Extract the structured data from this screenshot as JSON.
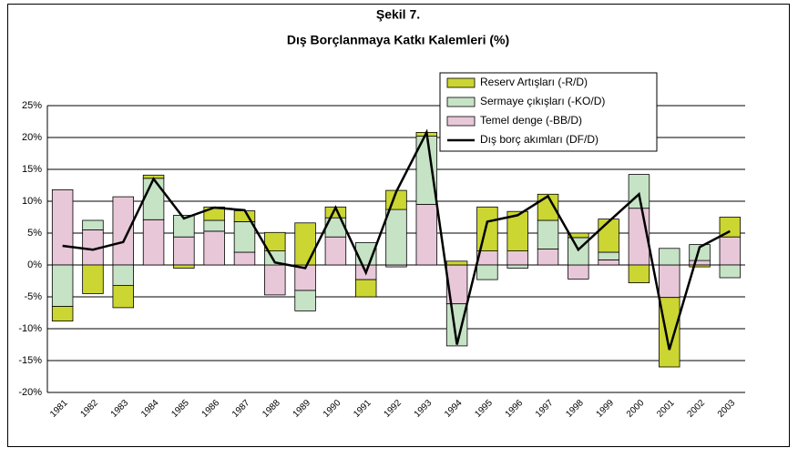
{
  "chart_data": {
    "type": "bar",
    "stacked": true,
    "title": "Şekil 7.",
    "subtitle": "Dış Borçlanmaya Katkı Kalemleri (%)",
    "categories": [
      "1981",
      "1982",
      "1983",
      "1984",
      "1985",
      "1986",
      "1987",
      "1988",
      "1989",
      "1990",
      "1991",
      "1992",
      "1993",
      "1994",
      "1995",
      "1996",
      "1997",
      "1998",
      "1999",
      "2000",
      "2001",
      "2002",
      "2003"
    ],
    "series": [
      {
        "name": "Temel denge (-BB/D)",
        "type": "bar",
        "color": "#e8c8d8",
        "values": [
          11.8,
          5.5,
          10.7,
          7.1,
          4.4,
          5.3,
          2.0,
          -4.7,
          -4.0,
          4.4,
          -2.3,
          -0.3,
          9.5,
          -6.1,
          2.2,
          2.2,
          2.5,
          -2.2,
          0.8,
          8.9,
          -5.1,
          0.7,
          4.4
        ]
      },
      {
        "name": "Sermaye çıkışları (-KO/D)",
        "type": "bar",
        "color": "#c6e3c6",
        "values": [
          -6.5,
          1.5,
          -3.2,
          6.5,
          3.4,
          1.7,
          4.8,
          2.2,
          -3.2,
          3.0,
          3.5,
          8.7,
          10.7,
          -6.6,
          -2.3,
          -0.5,
          4.5,
          4.3,
          1.2,
          5.3,
          2.6,
          2.5,
          -2.0
        ]
      },
      {
        "name": "Reserv Artışları (-R/D)",
        "type": "bar",
        "color": "#ccd632",
        "values": [
          -2.3,
          -4.5,
          -3.5,
          0.5,
          -0.5,
          2.1,
          1.7,
          2.9,
          6.6,
          1.7,
          -2.7,
          3.0,
          0.6,
          0.6,
          6.9,
          6.2,
          4.1,
          0.7,
          5.2,
          -2.8,
          -10.9,
          -0.3,
          3.1
        ]
      },
      {
        "name": "Dış borç akımları (DF/D)",
        "type": "line",
        "color": "#000000",
        "values": [
          3.0,
          2.4,
          3.6,
          13.5,
          7.3,
          9.0,
          8.6,
          0.4,
          -0.5,
          9.0,
          -1.2,
          11.5,
          20.8,
          -12.5,
          6.8,
          7.8,
          10.8,
          2.4,
          6.8,
          11.1,
          -13.3,
          2.8,
          5.3
        ]
      }
    ],
    "ylim": [
      -20,
      25
    ],
    "yticks": [
      {
        "value": -20,
        "label": "-20%"
      },
      {
        "value": -15,
        "label": "-15%"
      },
      {
        "value": -10,
        "label": "-10%"
      },
      {
        "value": -5,
        "label": "-5%"
      },
      {
        "value": 0,
        "label": "0%"
      },
      {
        "value": 5,
        "label": "5%"
      },
      {
        "value": 10,
        "label": "10%"
      },
      {
        "value": 15,
        "label": "15%"
      },
      {
        "value": 20,
        "label": "20%"
      },
      {
        "value": 25,
        "label": "25%"
      }
    ],
    "grid": true,
    "legend": "top-right"
  }
}
